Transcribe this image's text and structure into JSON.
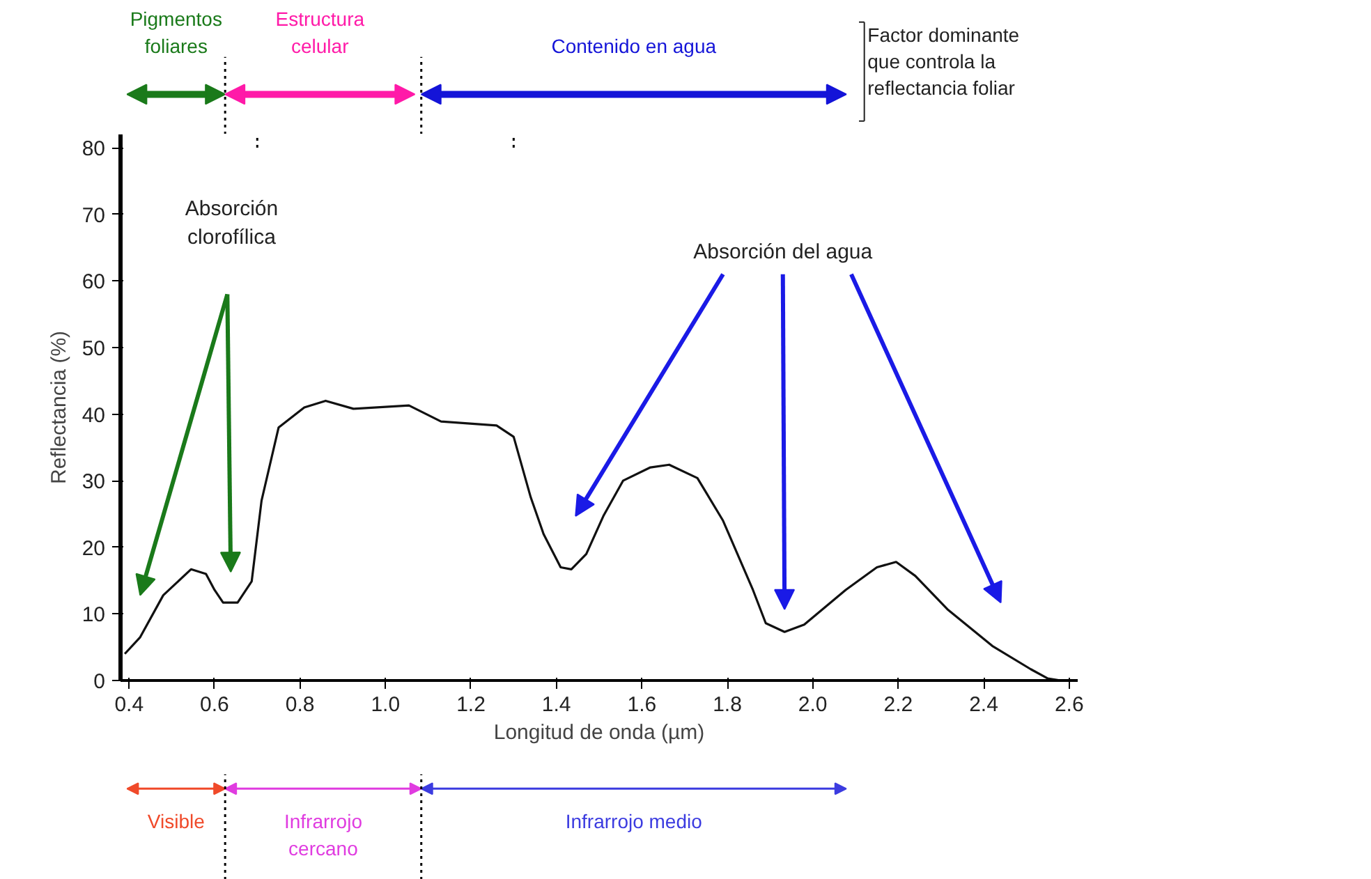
{
  "chart_data": {
    "type": "line",
    "xlabel": "Longitud de onda (µm)",
    "ylabel": "Reflectancia (%)",
    "xlim": [
      0.38,
      2.62
    ],
    "ylim": [
      0,
      82
    ],
    "xticks": [
      0.4,
      0.6,
      0.8,
      {
        "value": 1.0,
        "label": "1.0"
      },
      1.2,
      1.4,
      1.6,
      1.8,
      {
        "value": 2.0,
        "label": "2.0"
      },
      2.2,
      2.4,
      2.6
    ],
    "yticks": [
      0,
      10,
      20,
      30,
      40,
      50,
      60,
      70,
      80
    ],
    "grid": false,
    "series": [
      {
        "color": "#111111",
        "x": [
          0.39,
          0.426,
          0.48,
          0.545,
          0.58,
          0.6,
          0.62,
          0.654,
          0.687,
          0.71,
          0.75,
          0.81,
          0.86,
          0.925,
          1.055,
          1.13,
          1.26,
          1.3,
          1.34,
          1.37,
          1.41,
          1.435,
          1.47,
          1.51,
          1.556,
          1.62,
          1.664,
          1.73,
          1.79,
          1.86,
          1.89,
          1.934,
          1.98,
          2.077,
          2.15,
          2.195,
          2.24,
          2.315,
          2.42,
          2.51,
          2.55,
          2.58
        ],
        "values": [
          4,
          6.5,
          12.8,
          16.7,
          16,
          13.6,
          11.7,
          11.7,
          14.9,
          27,
          38,
          41,
          42,
          40.8,
          41.3,
          38.9,
          38.3,
          36.6,
          27.5,
          22,
          17,
          16.7,
          19,
          24.7,
          30,
          32,
          32.4,
          30.4,
          24,
          13.6,
          8.6,
          7.3,
          8.4,
          13.6,
          17,
          17.8,
          15.7,
          10.7,
          5.2,
          1.7,
          0.3,
          0
        ]
      }
    ],
    "annotations": [
      "Absorción\nclorofílica",
      "Absorción del agua",
      "Pigmentos\nfoliares",
      "Estructura\ncelular",
      "Contenido en agua",
      "Factor dominante\nque controla la\nreflectancia foliar",
      "Visible",
      "Infrarrojo\ncercano",
      "Infrarrojo medio"
    ]
  }
}
